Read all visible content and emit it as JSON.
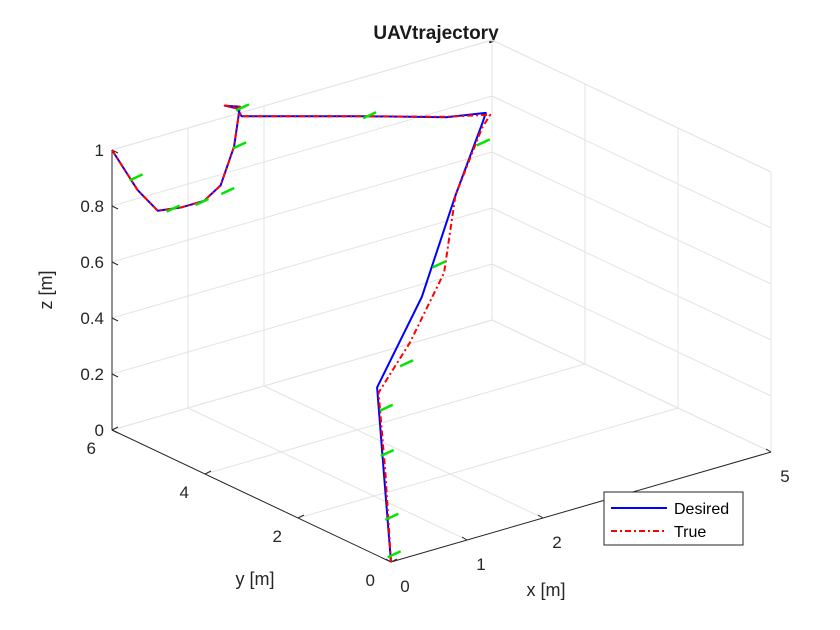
{
  "chart_data": {
    "type": "line3d",
    "title": "UAVtrajectory",
    "xlabel": "x [m]",
    "ylabel": "y [m]",
    "zlabel": "z [m]",
    "xlim": [
      0,
      5
    ],
    "ylim": [
      0,
      6
    ],
    "zlim": [
      0,
      1
    ],
    "xticks": [
      "0",
      "1",
      "2",
      "5"
    ],
    "yticks": [
      "0",
      "2",
      "4",
      "6"
    ],
    "zticks": [
      "0",
      "0.2",
      "0.4",
      "0.6",
      "0.8",
      "1"
    ],
    "grid": true,
    "legend_position": "bottom-right",
    "series": [
      {
        "name": "Desired",
        "color": "#0000ff",
        "style": "solid",
        "points": [
          [
            0,
            0,
            0
          ],
          [
            0,
            0.15,
            0.3
          ],
          [
            0,
            0.3,
            0.6
          ],
          [
            1.2,
            1.3,
            0.75
          ],
          [
            2.5,
            2.7,
            0.9
          ],
          [
            3.5,
            3.75,
            1.0
          ],
          [
            3.45,
            3.6,
            1.05
          ],
          [
            3.05,
            3.8,
            1.05
          ],
          [
            2.4,
            4.5,
            1.05
          ],
          [
            1.4,
            5.5,
            1.05
          ],
          [
            1.4,
            5.6,
            1.07
          ],
          [
            1.3,
            5.7,
            1.08
          ],
          [
            1.5,
            5.7,
            1.06
          ],
          [
            1.3,
            5.5,
            0.95
          ],
          [
            1.0,
            5.3,
            0.85
          ],
          [
            0.6,
            5.0,
            0.85
          ],
          [
            0.3,
            5.0,
            0.85
          ],
          [
            0.05,
            5.1,
            0.85
          ],
          [
            0,
            5.45,
            0.9
          ],
          [
            0,
            6,
            1.0
          ]
        ]
      },
      {
        "name": "True",
        "color": "#ff0000",
        "style": "dashdot",
        "points": [
          [
            0,
            0,
            0
          ],
          [
            0.02,
            0.15,
            0.3
          ],
          [
            0.02,
            0.3,
            0.58
          ],
          [
            0.8,
            0.9,
            0.65
          ],
          [
            1.8,
            1.8,
            0.75
          ],
          [
            2.5,
            2.7,
            0.9
          ],
          [
            3.4,
            3.6,
            1.0
          ],
          [
            3.6,
            3.75,
            1.02
          ],
          [
            3.1,
            3.9,
            1.04
          ],
          [
            2.4,
            4.5,
            1.05
          ],
          [
            1.4,
            5.5,
            1.05
          ],
          [
            1.4,
            5.6,
            1.07
          ],
          [
            1.3,
            5.7,
            1.08
          ],
          [
            1.5,
            5.7,
            1.06
          ],
          [
            1.3,
            5.5,
            0.95
          ],
          [
            1.0,
            5.3,
            0.85
          ],
          [
            0.6,
            5.0,
            0.85
          ],
          [
            0.3,
            5.0,
            0.85
          ],
          [
            0.05,
            5.1,
            0.85
          ],
          [
            0,
            5.45,
            0.9
          ],
          [
            0,
            6,
            1.0
          ]
        ]
      }
    ],
    "heading_markers": {
      "color": "#00e600",
      "points": [
        [
          0,
          0.05,
          0.02
        ],
        [
          0,
          0.1,
          0.15
        ],
        [
          0,
          0.2,
          0.37
        ],
        [
          0,
          0.22,
          0.53
        ],
        [
          0.5,
          0.6,
          0.62
        ],
        [
          1.6,
          1.7,
          0.8
        ],
        [
          3.1,
          3.2,
          1.0
        ],
        [
          2.4,
          4.5,
          1.05
        ],
        [
          1.4,
          5.6,
          1.07
        ],
        [
          1.3,
          5.5,
          0.95
        ],
        [
          0.9,
          5.1,
          0.85
        ],
        [
          0.5,
          5.0,
          0.85
        ],
        [
          0.15,
          5.05,
          0.85
        ],
        [
          0,
          5.6,
          0.93
        ]
      ]
    }
  }
}
